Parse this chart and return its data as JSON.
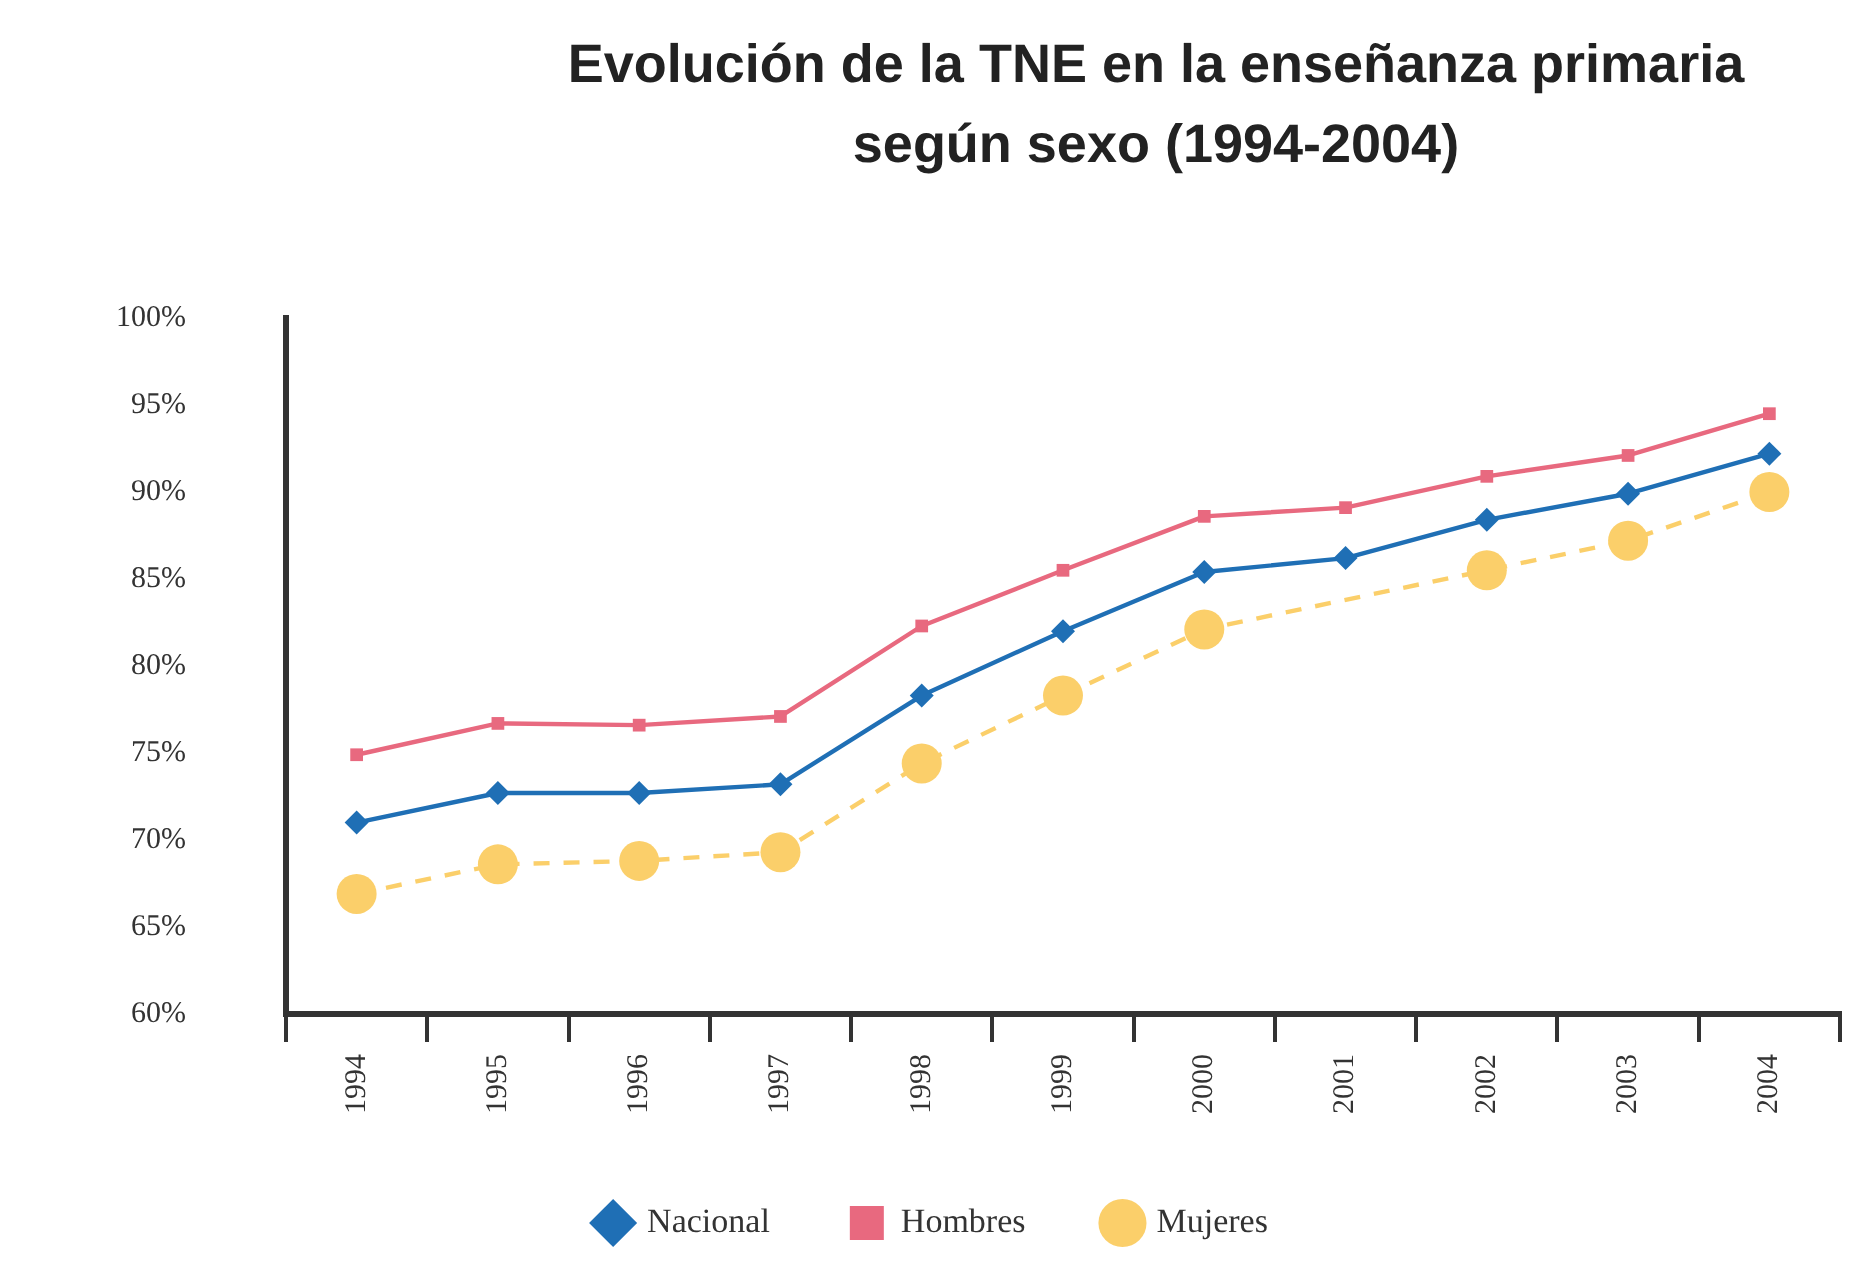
{
  "chart_data": {
    "type": "line",
    "title": "Evolución de la TNE en la enseñanza primaria según sexo (1994-2004)",
    "categories": [
      "1994",
      "1995",
      "1996",
      "1997",
      "1998",
      "1999",
      "2000",
      "2001",
      "2002",
      "2003",
      "2004"
    ],
    "series": [
      {
        "name": "Nacional",
        "color": "#1f6fb5",
        "marker": "diamond",
        "line_style": "solid",
        "values": [
          71.0,
          72.7,
          72.7,
          73.2,
          78.3,
          82.0,
          85.4,
          86.2,
          88.4,
          89.9,
          92.2
        ]
      },
      {
        "name": "Hombres",
        "color": "#e8697f",
        "marker": "square",
        "line_style": "solid",
        "values": [
          74.9,
          76.7,
          76.6,
          77.1,
          82.3,
          85.5,
          88.6,
          89.1,
          90.9,
          92.1,
          94.5
        ]
      },
      {
        "name": "Mujeres",
        "color": "#fbcf6a",
        "marker": "circle",
        "line_style": "dashed",
        "values": [
          66.9,
          68.6,
          68.8,
          69.3,
          74.4,
          78.3,
          82.1,
          null,
          85.5,
          87.2,
          90.0
        ]
      }
    ],
    "ylim": [
      60,
      100
    ],
    "yticks": [
      {
        "value": 60,
        "label": "60%"
      },
      {
        "value": 65,
        "label": "65%"
      },
      {
        "value": 70,
        "label": "70%"
      },
      {
        "value": 75,
        "label": "75%"
      },
      {
        "value": 80,
        "label": "80%"
      },
      {
        "value": 85,
        "label": "85%"
      },
      {
        "value": 90,
        "label": "90%"
      },
      {
        "value": 95,
        "label": "95%"
      },
      {
        "value": 100,
        "label": "100%"
      }
    ],
    "grid": false,
    "legend": "bottom"
  }
}
